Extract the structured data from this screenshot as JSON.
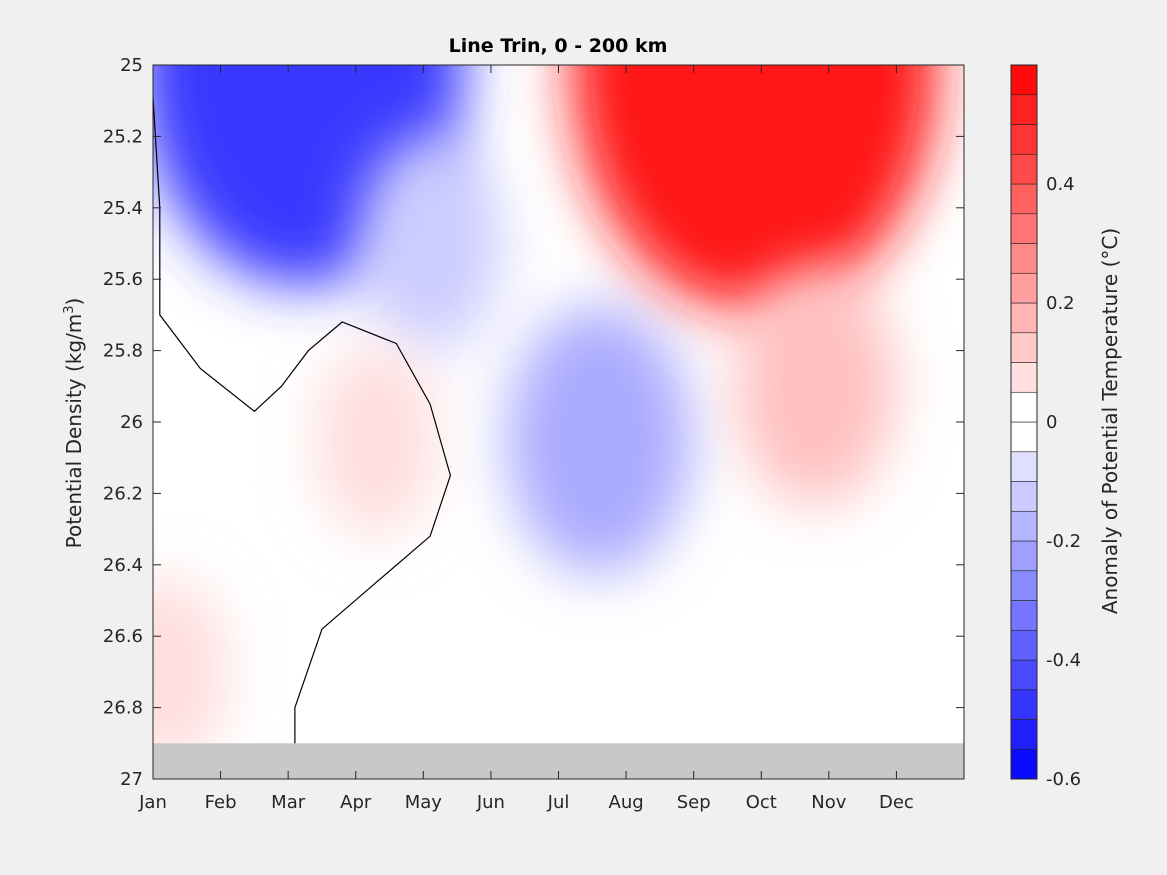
{
  "chart_data": {
    "type": "heatmap",
    "title": "Line Trin, 0 - 200 km",
    "xlabel": "",
    "ylabel_main": "Potential Density (kg/m",
    "ylabel_sup": "3",
    "ylabel_close": ")",
    "x_ticks": [
      "Jan",
      "Feb",
      "Mar",
      "Apr",
      "May",
      "Jun",
      "Jul",
      "Aug",
      "Sep",
      "Oct",
      "Nov",
      "Dec"
    ],
    "x_tick_values": [
      0,
      1,
      2,
      3,
      4,
      5,
      6,
      7,
      8,
      9,
      10,
      11
    ],
    "xlim": [
      0,
      12
    ],
    "y_ticks": [
      "25",
      "25.2",
      "25.4",
      "25.6",
      "25.8",
      "26",
      "26.2",
      "26.4",
      "26.6",
      "26.8",
      "27"
    ],
    "y_tick_values": [
      25,
      25.2,
      25.4,
      25.6,
      25.8,
      26,
      26.2,
      26.4,
      26.6,
      26.8,
      27
    ],
    "ylim": [
      25,
      27
    ],
    "y_reversed": true,
    "no_data_below": 26.9,
    "colorbar": {
      "label": "Anomaly of Potential Temperature (°C)",
      "range": [
        -0.6,
        0.6
      ],
      "step": 0.05,
      "tick_values": [
        -0.6,
        -0.4,
        -0.2,
        0,
        0.2,
        0.4
      ],
      "tick_labels": [
        "-0.6",
        "-0.4",
        "-0.2",
        "0",
        "0.2",
        "0.4"
      ],
      "negative_color": "#0000ff",
      "positive_color": "#ff0000",
      "zero_color": "#ffffff",
      "nodata_color": "#c8c8c8"
    },
    "anomaly_centers": [
      {
        "month": 2.2,
        "density": 25.0,
        "value": -0.47
      },
      {
        "month": 4.1,
        "density": 25.5,
        "value": -0.12
      },
      {
        "month": 6.6,
        "density": 26.05,
        "value": -0.2
      },
      {
        "month": 3.3,
        "density": 26.05,
        "value": 0.08
      },
      {
        "month": 8.9,
        "density": 25.0,
        "value": 0.55
      },
      {
        "month": 9.8,
        "density": 25.9,
        "value": 0.15
      },
      {
        "month": 0.2,
        "density": 26.7,
        "value": 0.08
      }
    ],
    "zero_contour": [
      {
        "month": 0,
        "density": 25.09
      },
      {
        "month": 0.1,
        "density": 25.4
      },
      {
        "month": 0.1,
        "density": 25.7
      },
      {
        "month": 0.7,
        "density": 25.85
      },
      {
        "month": 1.5,
        "density": 25.97
      },
      {
        "month": 1.9,
        "density": 25.9
      },
      {
        "month": 2.3,
        "density": 25.8
      },
      {
        "month": 2.8,
        "density": 25.72
      },
      {
        "month": 3.6,
        "density": 25.78
      },
      {
        "month": 4.1,
        "density": 25.95
      },
      {
        "month": 4.4,
        "density": 26.15
      },
      {
        "month": 4.1,
        "density": 26.32
      },
      {
        "month": 3.3,
        "density": 26.45
      },
      {
        "month": 2.5,
        "density": 26.58
      },
      {
        "month": 2.1,
        "density": 26.8
      },
      {
        "month": 2.1,
        "density": 26.9
      }
    ]
  }
}
